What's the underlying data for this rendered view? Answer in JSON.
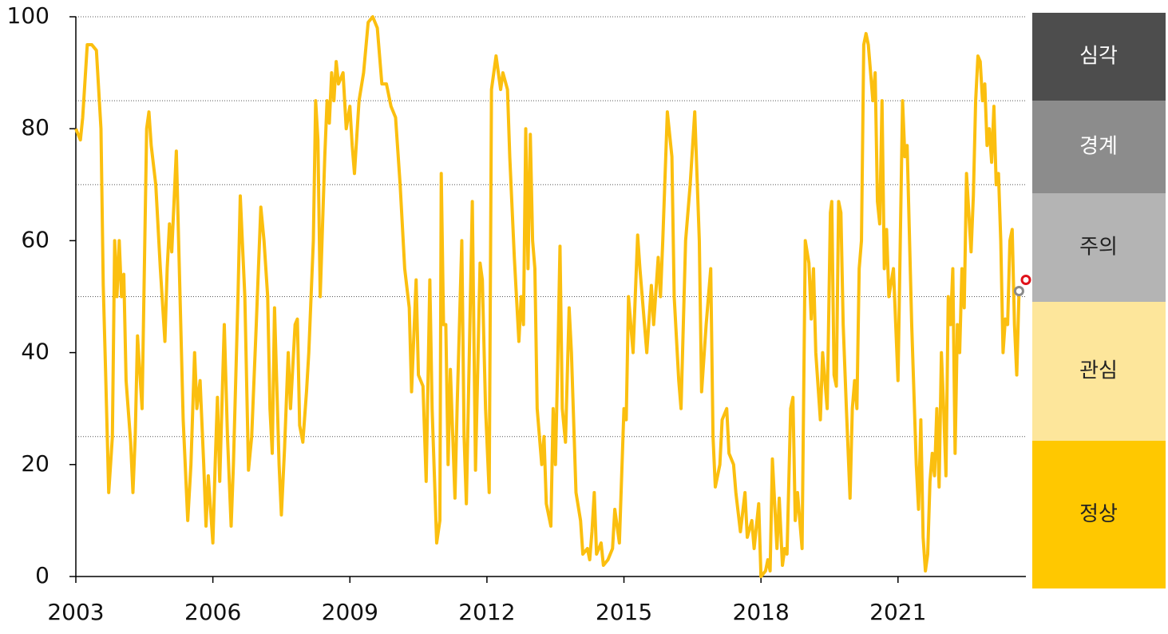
{
  "chart_data": {
    "type": "line",
    "xlim": [
      2003,
      2023.8
    ],
    "xticks": [
      2003,
      2006,
      2009,
      2012,
      2015,
      2018,
      2021
    ],
    "ylim": [
      0,
      100
    ],
    "yticks": [
      0,
      20,
      40,
      60,
      80,
      100
    ],
    "grid_lines": [
      25,
      50,
      70,
      85,
      100
    ],
    "series": [
      {
        "color": "#fbbf0f",
        "x": [
          2003.0,
          2003.1,
          2003.15,
          2003.25,
          2003.35,
          2003.45,
          2003.55,
          2003.6,
          2003.65,
          2003.72,
          2003.8,
          2003.85,
          2003.9,
          2003.95,
          2004.0,
          2004.05,
          2004.1,
          2004.2,
          2004.25,
          2004.3,
          2004.35,
          2004.45,
          2004.55,
          2004.6,
          2004.65,
          2004.75,
          2004.85,
          2004.95,
          2005.0,
          2005.05,
          2005.1,
          2005.2,
          2005.25,
          2005.35,
          2005.45,
          2005.52,
          2005.6,
          2005.65,
          2005.72,
          2005.8,
          2005.85,
          2005.9,
          2006.0,
          2006.05,
          2006.1,
          2006.15,
          2006.25,
          2006.32,
          2006.4,
          2006.45,
          2006.55,
          2006.6,
          2006.7,
          2006.78,
          2006.85,
          2006.95,
          2007.05,
          2007.12,
          2007.2,
          2007.25,
          2007.3,
          2007.35,
          2007.45,
          2007.5,
          2007.57,
          2007.65,
          2007.7,
          2007.8,
          2007.85,
          2007.9,
          2007.97,
          2008.05,
          2008.1,
          2008.2,
          2008.25,
          2008.3,
          2008.35,
          2008.45,
          2008.5,
          2008.55,
          2008.6,
          2008.65,
          2008.7,
          2008.75,
          2008.85,
          2008.92,
          2009.0,
          2009.05,
          2009.1,
          2009.2,
          2009.3,
          2009.4,
          2009.5,
          2009.6,
          2009.7,
          2009.8,
          2009.9,
          2010.0,
          2010.1,
          2010.2,
          2010.3,
          2010.35,
          2010.45,
          2010.5,
          2010.6,
          2010.67,
          2010.75,
          2010.8,
          2010.9,
          2010.97,
          2011.0,
          2011.05,
          2011.1,
          2011.15,
          2011.2,
          2011.3,
          2011.35,
          2011.45,
          2011.5,
          2011.55,
          2011.62,
          2011.68,
          2011.75,
          2011.85,
          2011.9,
          2011.97,
          2012.05,
          2012.1,
          2012.2,
          2012.3,
          2012.35,
          2012.45,
          2012.5,
          2012.6,
          2012.7,
          2012.75,
          2012.8,
          2012.85,
          2012.9,
          2012.95,
          2013.0,
          2013.05,
          2013.1,
          2013.2,
          2013.25,
          2013.3,
          2013.4,
          2013.45,
          2013.5,
          2013.55,
          2013.6,
          2013.65,
          2013.72,
          2013.8,
          2013.85,
          2013.95,
          2014.05,
          2014.1,
          2014.2,
          2014.25,
          2014.3,
          2014.35,
          2014.4,
          2014.5,
          2014.55,
          2014.65,
          2014.75,
          2014.8,
          2014.9,
          2015.0,
          2015.05,
          2015.1,
          2015.2,
          2015.3,
          2015.35,
          2015.45,
          2015.5,
          2015.6,
          2015.65,
          2015.75,
          2015.8,
          2015.85,
          2015.95,
          2016.05,
          2016.1,
          2016.2,
          2016.25,
          2016.3,
          2016.35,
          2016.45,
          2016.55,
          2016.65,
          2016.7,
          2016.8,
          2016.9,
          2016.95,
          2017.0,
          2017.1,
          2017.15,
          2017.25,
          2017.3,
          2017.4,
          2017.45,
          2017.55,
          2017.65,
          2017.7,
          2017.8,
          2017.85,
          2017.95,
          2018.0,
          2018.1,
          2018.15,
          2018.2,
          2018.25,
          2018.35,
          2018.4,
          2018.47,
          2018.52,
          2018.57,
          2018.65,
          2018.7,
          2018.75,
          2018.8,
          2018.9,
          2018.97,
          2019.05,
          2019.1,
          2019.15,
          2019.2,
          2019.3,
          2019.35,
          2019.45,
          2019.52,
          2019.55,
          2019.6,
          2019.65,
          2019.7,
          2019.75,
          2019.8,
          2019.87,
          2019.95,
          2020.0,
          2020.05,
          2020.1,
          2020.15,
          2020.2,
          2020.25,
          2020.3,
          2020.35,
          2020.45,
          2020.5,
          2020.55,
          2020.6,
          2020.65,
          2020.7,
          2020.75,
          2020.8,
          2020.9,
          2021.0,
          2021.05,
          2021.1,
          2021.15,
          2021.2,
          2021.3,
          2021.4,
          2021.45,
          2021.5,
          2021.55,
          2021.6,
          2021.65,
          2021.7,
          2021.75,
          2021.8,
          2021.85,
          2021.9,
          2021.95,
          2022.0,
          2022.05,
          2022.1,
          2022.15,
          2022.2,
          2022.25,
          2022.3,
          2022.35,
          2022.4,
          2022.45,
          2022.5,
          2022.55,
          2022.6,
          2022.65,
          2022.7,
          2022.75,
          2022.8,
          2022.85,
          2022.9,
          2022.95,
          2023.0,
          2023.05,
          2023.1,
          2023.15,
          2023.2,
          2023.25,
          2023.3,
          2023.35,
          2023.4,
          2023.45,
          2023.5,
          2023.55,
          2023.6,
          2023.65
        ],
        "values": [
          80,
          78,
          82,
          95,
          95,
          94,
          80,
          52,
          37,
          15,
          25,
          60,
          50,
          60,
          50,
          54,
          35,
          24,
          15,
          25,
          43,
          30,
          80,
          83,
          77,
          70,
          55,
          42,
          55,
          63,
          58,
          76,
          60,
          28,
          10,
          20,
          40,
          30,
          35,
          20,
          9,
          18,
          6,
          20,
          32,
          17,
          45,
          25,
          9,
          20,
          50,
          68,
          50,
          19,
          25,
          45,
          66,
          60,
          50,
          30,
          22,
          48,
          20,
          11,
          23,
          40,
          30,
          45,
          46,
          27,
          24,
          33,
          40,
          60,
          85,
          78,
          50,
          75,
          85,
          81,
          90,
          85,
          92,
          88,
          90,
          80,
          84,
          77,
          72,
          85,
          90,
          99,
          100,
          98,
          88,
          88,
          84,
          82,
          70,
          55,
          48,
          33,
          53,
          36,
          34,
          17,
          53,
          30,
          6,
          10,
          72,
          45,
          45,
          20,
          37,
          14,
          31,
          60,
          25,
          13,
          42,
          67,
          19,
          56,
          53,
          30,
          15,
          87,
          93,
          87,
          90,
          87,
          75,
          57,
          42,
          50,
          45,
          80,
          55,
          79,
          60,
          55,
          30,
          20,
          25,
          13,
          9,
          30,
          20,
          38,
          59,
          30,
          24,
          48,
          40,
          15,
          10,
          4,
          5,
          3,
          8,
          15,
          4,
          6,
          2,
          3,
          5,
          12,
          6,
          30,
          28,
          50,
          40,
          61,
          55,
          45,
          40,
          52,
          45,
          57,
          50,
          60,
          83,
          75,
          50,
          35,
          30,
          45,
          60,
          70,
          83,
          60,
          33,
          45,
          55,
          25,
          16,
          20,
          28,
          30,
          22,
          20,
          15,
          8,
          15,
          7,
          10,
          5,
          13,
          0,
          1,
          3,
          1,
          21,
          5,
          14,
          2,
          5,
          4,
          30,
          32,
          10,
          15,
          5,
          60,
          56,
          46,
          55,
          40,
          28,
          40,
          30,
          65,
          67,
          36,
          34,
          67,
          65,
          45,
          30,
          14,
          30,
          35,
          30,
          55,
          60,
          95,
          97,
          95,
          85,
          90,
          67,
          63,
          85,
          55,
          62,
          50,
          55,
          35,
          60,
          85,
          75,
          77,
          45,
          20,
          12,
          28,
          7,
          1,
          4,
          17,
          22,
          18,
          30,
          16,
          40,
          30,
          18,
          50,
          45,
          55,
          22,
          45,
          40,
          55,
          48,
          72,
          65,
          58,
          68,
          85,
          93,
          92,
          85,
          88,
          77,
          80,
          74,
          84,
          70,
          72,
          60,
          40,
          46,
          45,
          60,
          62,
          45,
          36,
          51
        ]
      }
    ],
    "markers": [
      {
        "x": 2023.65,
        "value": 51,
        "color": "#8a8a8a"
      },
      {
        "x": 2023.8,
        "value": 53,
        "color": "#e0121b"
      }
    ],
    "levels": [
      {
        "label": "심각",
        "color": "#4d4d4d",
        "text_color": "#ffffff"
      },
      {
        "label": "경계",
        "color": "#8c8c8c",
        "text_color": "#ffffff"
      },
      {
        "label": "주의",
        "color": "#b4b4b4",
        "text_color": "#222222"
      },
      {
        "label": "관심",
        "color": "#fde69b",
        "text_color": "#222222"
      },
      {
        "label": "정상",
        "color": "#ffc800",
        "text_color": "#222222"
      }
    ]
  }
}
